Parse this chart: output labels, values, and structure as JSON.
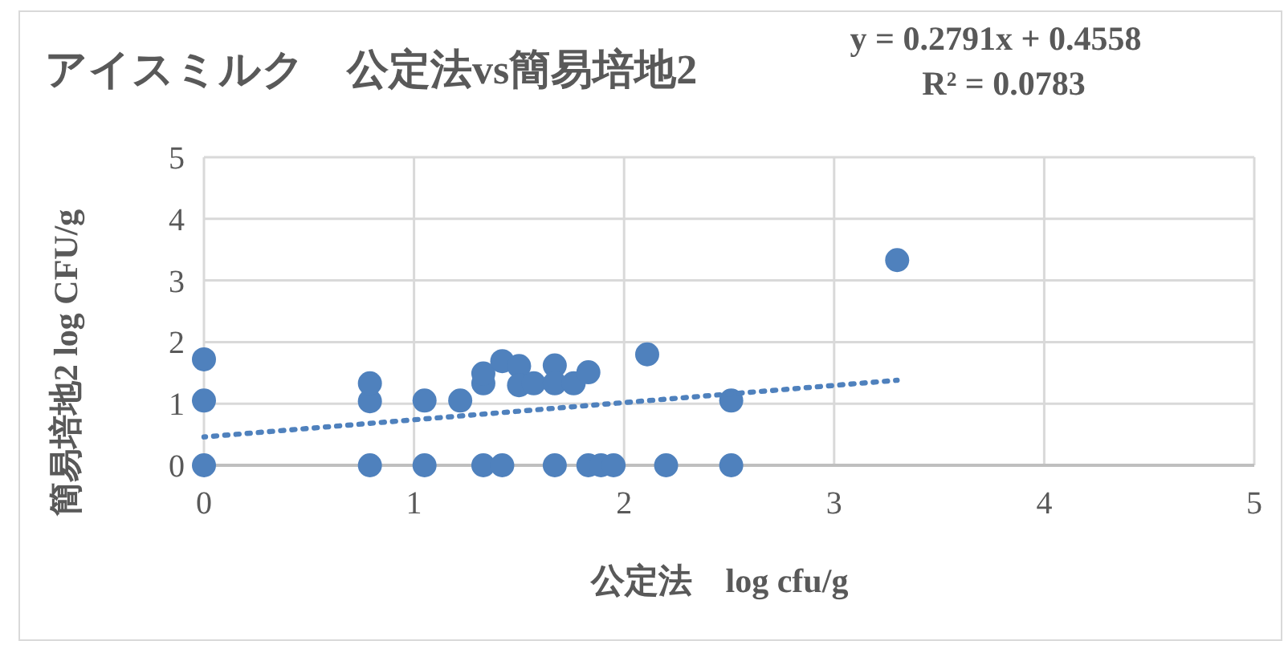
{
  "chart_data": {
    "type": "scatter",
    "title": "アイスミルク　公定法vs簡易培地2",
    "annotations": [
      "y = 0.2791x + 0.4558",
      "R² = 0.0783"
    ],
    "xlabel": "公定法　log cfu/g",
    "ylabel": "簡易培地2 log CFU/g",
    "xlim": [
      0,
      5
    ],
    "ylim": [
      0,
      5
    ],
    "xticks": [
      0,
      1,
      2,
      3,
      4,
      5
    ],
    "yticks": [
      0,
      1,
      2,
      3,
      4,
      5
    ],
    "grid": true,
    "marker": "circle",
    "series": [
      {
        "type": "scatter",
        "color": "#4f81bd",
        "x": [
          0,
          0,
          0,
          0.79,
          0.79,
          0.79,
          1.05,
          1.05,
          1.22,
          1.33,
          1.33,
          1.33,
          1.42,
          1.42,
          1.5,
          1.5,
          1.57,
          1.67,
          1.67,
          1.67,
          1.76,
          1.83,
          1.83,
          1.89,
          1.95,
          2.11,
          2.2,
          2.51,
          2.51,
          3.3
        ],
        "values": [
          0,
          1.05,
          1.72,
          0,
          1.04,
          1.33,
          0,
          1.05,
          1.05,
          0,
          1.33,
          1.49,
          0,
          1.69,
          1.61,
          1.3,
          1.33,
          0,
          1.62,
          1.33,
          1.33,
          0,
          1.51,
          0,
          0,
          1.8,
          0,
          0,
          1.05,
          3.33
        ]
      },
      {
        "type": "line",
        "color": "#4f81bd",
        "line_style": "dotted",
        "marker": "none",
        "x": [
          0,
          3.3
        ],
        "values": [
          0.46,
          1.38
        ]
      }
    ]
  }
}
